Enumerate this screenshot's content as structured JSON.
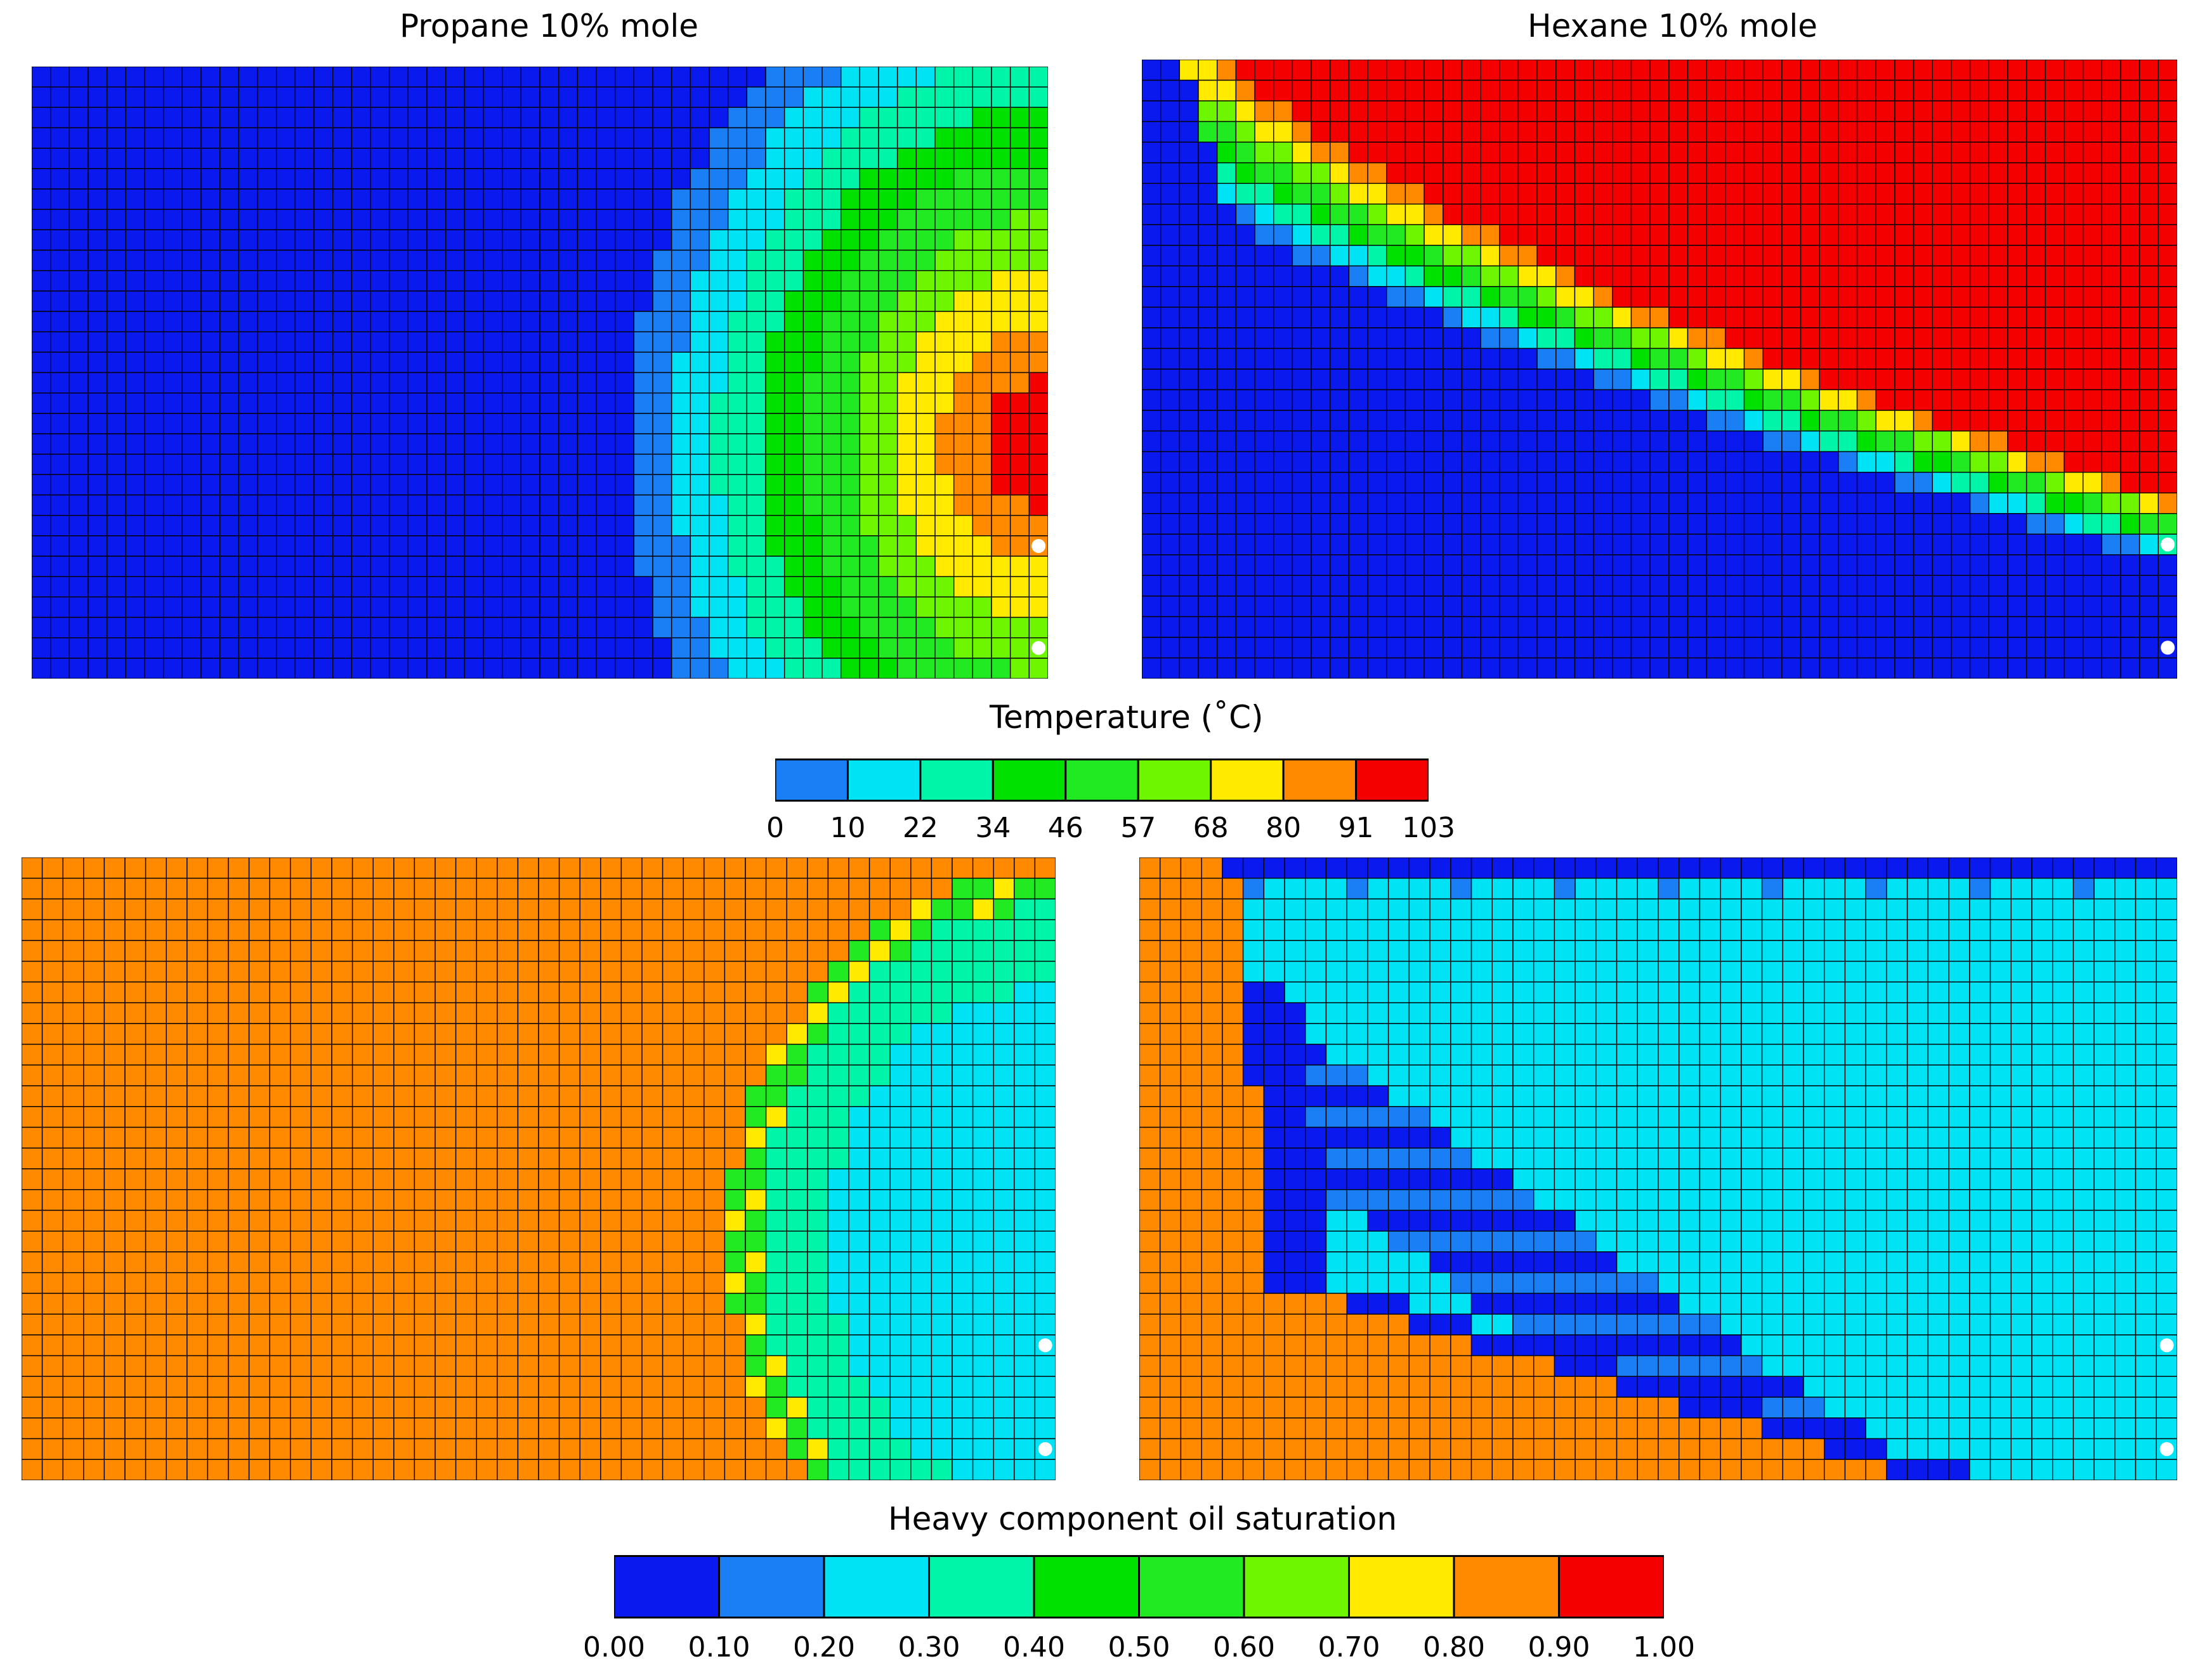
{
  "chart_data": [
    {
      "type": "heatmap",
      "title": "Propane 10% mole",
      "quantity": "Temperature",
      "grid": {
        "cols": 54,
        "rows": 30
      },
      "model": "propane_temperature",
      "wells": [
        {
          "x": 53,
          "y": 23
        },
        {
          "x": 53,
          "y": 28
        }
      ]
    },
    {
      "type": "heatmap",
      "title": "Hexane 10% mole",
      "quantity": "Temperature",
      "grid": {
        "cols": 55,
        "rows": 30
      },
      "model": "hexane_temperature",
      "wells": [
        {
          "x": 54,
          "y": 23
        },
        {
          "x": 54,
          "y": 28
        }
      ]
    },
    {
      "type": "heatmap",
      "title": "",
      "quantity": "Heavy component oil saturation",
      "grid": {
        "cols": 50,
        "rows": 30
      },
      "model": "propane_saturation",
      "wells": [
        {
          "x": 49,
          "y": 23
        },
        {
          "x": 49,
          "y": 28
        }
      ]
    },
    {
      "type": "heatmap",
      "title": "",
      "quantity": "Heavy component oil saturation",
      "grid": {
        "cols": 50,
        "rows": 30
      },
      "model": "hexane_saturation",
      "wells": [
        {
          "x": 49,
          "y": 23
        },
        {
          "x": 49,
          "y": 28
        }
      ]
    }
  ],
  "colorbars": {
    "temperature": {
      "label": "Temperature (˚C)",
      "ticks": [
        "0",
        "10",
        "22",
        "34",
        "46",
        "57",
        "68",
        "80",
        "91",
        "103"
      ],
      "colors": [
        "#1a7ff5",
        "#00e3f5",
        "#00f5a8",
        "#00e100",
        "#22ea22",
        "#6ef500",
        "#ffea00",
        "#ff8a00",
        "#f50000"
      ]
    },
    "saturation": {
      "label": "Heavy component oil saturation",
      "ticks": [
        "0.00",
        "0.10",
        "0.20",
        "0.30",
        "0.40",
        "0.50",
        "0.60",
        "0.70",
        "0.80",
        "0.90",
        "1.00"
      ],
      "colors": [
        "#0a1aef",
        "#1a7ff5",
        "#00e3f5",
        "#00f5a8",
        "#00e100",
        "#22ea22",
        "#6ef500",
        "#ffea00",
        "#ff8a00",
        "#f50000"
      ]
    }
  }
}
